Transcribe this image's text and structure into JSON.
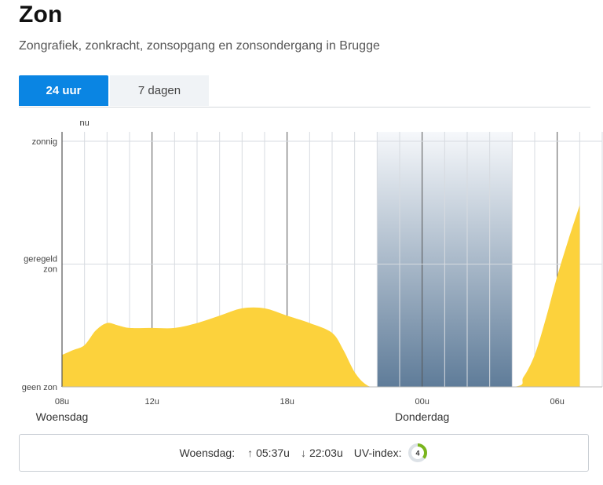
{
  "page": {
    "title": "Zon",
    "subtitle": "Zongrafiek, zonkracht, zonsopgang en zonsondergang in Brugge"
  },
  "tabs": [
    {
      "label": "24 uur",
      "active": true
    },
    {
      "label": "7 dagen",
      "active": false
    }
  ],
  "chart_data": {
    "type": "area",
    "title": "",
    "xlabel": "",
    "ylabel": "",
    "x_range": [
      "08u",
      "07u"
    ],
    "y_levels": [
      "geen zon",
      "geregeld zon",
      "zonnig"
    ],
    "ylim": [
      0,
      1
    ],
    "x_ticks": [
      "08u",
      "12u",
      "18u",
      "00u",
      "06u"
    ],
    "day_labels": [
      {
        "label": "Woensdag",
        "at": "08u"
      },
      {
        "label": "Donderdag",
        "at": "00u"
      }
    ],
    "now_label": "nu",
    "now_at": "09u",
    "night": {
      "from": "22u",
      "to": "04u"
    },
    "grid": true,
    "fill_color": "#fcd23c",
    "night_color_top": "#f6f8fb",
    "night_color_bottom": "#5f7c99",
    "series": [
      {
        "hours": [
          8,
          8.5,
          9,
          9.5,
          10,
          10.5,
          11,
          12,
          13,
          14,
          15,
          16,
          17,
          18,
          19,
          20,
          20.5,
          21,
          21.5,
          22,
          24,
          28,
          28.5,
          29,
          29.5,
          30,
          30.5,
          31
        ],
        "values": [
          0.13,
          0.15,
          0.17,
          0.23,
          0.26,
          0.25,
          0.24,
          0.24,
          0.24,
          0.26,
          0.29,
          0.32,
          0.32,
          0.29,
          0.26,
          0.22,
          0.15,
          0.06,
          0.01,
          0.0,
          0.0,
          0.0,
          0.04,
          0.13,
          0.28,
          0.45,
          0.6,
          0.74
        ]
      }
    ]
  },
  "summary": {
    "day": "Woensdag:",
    "sunrise": "05:37u",
    "sunset": "22:03u",
    "uv_label": "UV-index:",
    "uv_value": "4",
    "uv_fraction": 0.36,
    "uv_color": "#7ab51d",
    "arrow_up_icon": "↑",
    "arrow_down_icon": "↓"
  }
}
